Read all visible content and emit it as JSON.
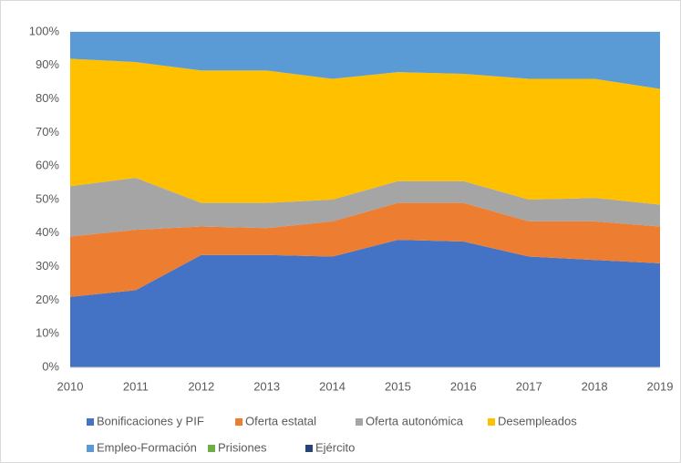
{
  "chart_data": {
    "type": "stacked_area",
    "x": [
      2010,
      2011,
      2012,
      2013,
      2014,
      2015,
      2016,
      2017,
      2018,
      2019
    ],
    "xlim": [
      2010,
      2019
    ],
    "xticks": [
      2010,
      2011,
      2012,
      2013,
      2014,
      2015,
      2016,
      2017,
      2018,
      2019
    ],
    "ylim": [
      0,
      100
    ],
    "yticks": [
      {
        "value": 0,
        "label": "0%"
      },
      {
        "value": 10,
        "label": "10%"
      },
      {
        "value": 20,
        "label": "20%"
      },
      {
        "value": 30,
        "label": "30%"
      },
      {
        "value": 40,
        "label": "40%"
      },
      {
        "value": 50,
        "label": "50%"
      },
      {
        "value": 60,
        "label": "60%"
      },
      {
        "value": 70,
        "label": "70%"
      },
      {
        "value": 80,
        "label": "80%"
      },
      {
        "value": 90,
        "label": "90%"
      },
      {
        "value": 100,
        "label": "100%"
      }
    ],
    "grid": true,
    "legend": "bottom",
    "series": [
      {
        "name": "Bonificaciones y PIF",
        "color": "#4472c4",
        "values": [
          21,
          23,
          33.5,
          33.5,
          33,
          38,
          37.5,
          33,
          32,
          31
        ]
      },
      {
        "name": "Oferta estatal",
        "color": "#ed7d31",
        "values": [
          18,
          18,
          8.5,
          8,
          10.5,
          11,
          11.5,
          10.5,
          11.5,
          11
        ]
      },
      {
        "name": "Oferta autonómica",
        "color": "#a5a5a5",
        "values": [
          15,
          15.5,
          7,
          7.5,
          6.5,
          6.5,
          6.5,
          6.5,
          7,
          6.5
        ]
      },
      {
        "name": "Desempleados",
        "color": "#ffc000",
        "values": [
          38,
          34.5,
          39.5,
          39.5,
          36,
          32.5,
          32,
          36,
          35.5,
          34.5
        ]
      },
      {
        "name": "Empleo-Formación",
        "color": "#5b9bd5",
        "values": [
          8,
          9,
          11.5,
          11.5,
          14,
          12,
          12.5,
          14,
          14,
          17
        ]
      },
      {
        "name": "Prisiones",
        "color": "#70ad47",
        "values": [
          0,
          0,
          0,
          0,
          0,
          0,
          0,
          0,
          0,
          0
        ]
      },
      {
        "name": "Ejército",
        "color": "#264478",
        "values": [
          0,
          0,
          0,
          0,
          0,
          0,
          0,
          0,
          0,
          0
        ]
      }
    ]
  }
}
